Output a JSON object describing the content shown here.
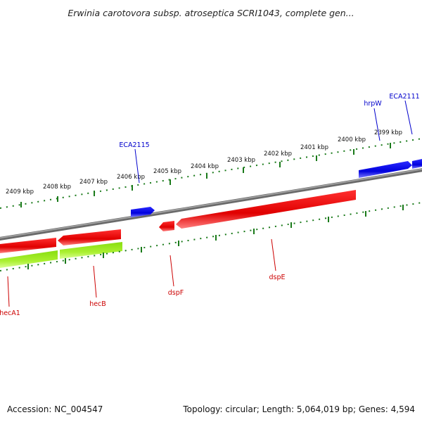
{
  "title": "Erwinia carotovora subsp. atroseptica SCRI1043, complete gen...",
  "accession": "Accession: NC_004547",
  "stats": "Topology: circular; Length: 5,064,019 bp; Genes: 4,594",
  "ticks": [
    "2409 kbp",
    "2408 kbp",
    "2407 kbp",
    "2406 kbp",
    "2405 kbp",
    "2404 kbp",
    "2403 kbp",
    "2402 kbp",
    "2401 kbp",
    "2400 kbp",
    "2399 kbp"
  ],
  "colors": {
    "forward_gene": "#1010e0",
    "reverse_gene": "#e80000",
    "rna_track": "#99ee22",
    "backbone": "#808080",
    "tick": "#1a7a1a",
    "forward_label": "#0000cc",
    "reverse_label": "#cc0000"
  },
  "forward_labels": [
    "ECA2115",
    "hrpW",
    "ECA2111"
  ],
  "reverse_labels": [
    "hecA1",
    "hecB",
    "dspF",
    "dspE"
  ]
}
